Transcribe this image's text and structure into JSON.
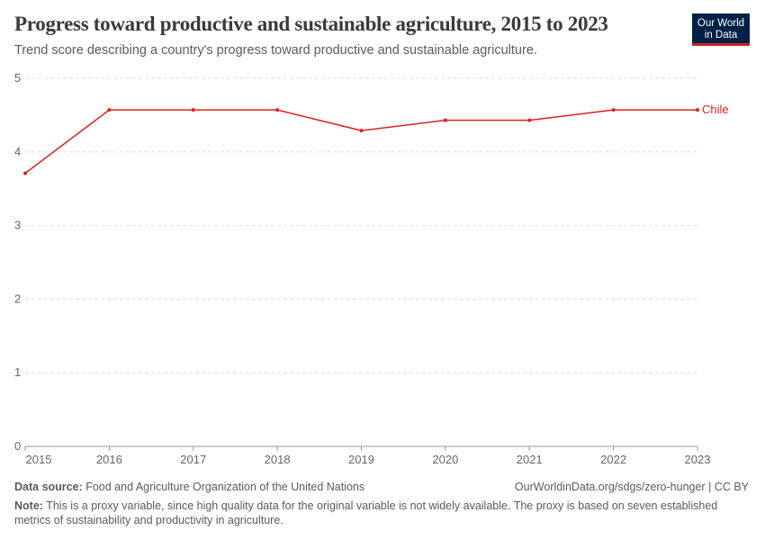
{
  "header": {
    "title": "Progress toward productive and sustainable agriculture, 2015 to 2023",
    "subtitle": "Trend score describing a country's progress toward productive and sustainable agriculture.",
    "logo": "Our World in Data"
  },
  "chart_data": {
    "type": "line",
    "x": [
      2015,
      2016,
      2017,
      2018,
      2019,
      2020,
      2021,
      2022,
      2023
    ],
    "series": [
      {
        "name": "Chile",
        "color": "#e0201f",
        "values": [
          3.71,
          4.57,
          4.57,
          4.57,
          4.29,
          4.43,
          4.43,
          4.57,
          4.57
        ]
      }
    ],
    "ylim": [
      0,
      5
    ],
    "yticks": [
      "0",
      "1",
      "2",
      "3",
      "4",
      "5"
    ],
    "xticks": [
      "2015",
      "2016",
      "2017",
      "2018",
      "2019",
      "2020",
      "2021",
      "2022",
      "2023"
    ],
    "grid": true,
    "legend": "right-end-label"
  },
  "footer": {
    "source_label": "Data source:",
    "source": "Food and Agriculture Organization of the United Nations",
    "url": "OurWorldinData.org/sdgs/zero-hunger | CC BY",
    "note_label": "Note:",
    "note": "This is a proxy variable, since high quality data for the original variable is not widely available. The proxy is based on seven established metrics of sustainability and productivity in agriculture."
  }
}
